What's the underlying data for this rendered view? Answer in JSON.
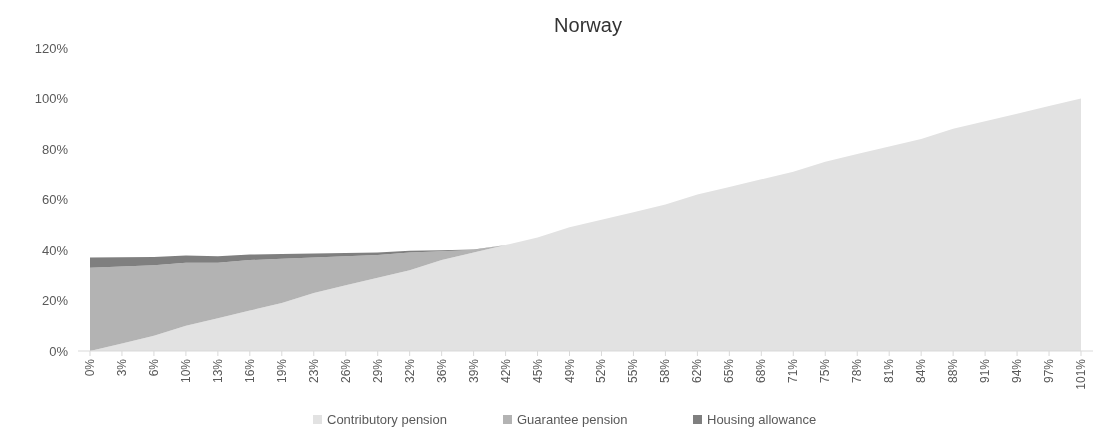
{
  "chart_data": {
    "type": "area",
    "title": "Norway",
    "stacked": true,
    "categories": [
      "0%",
      "3%",
      "6%",
      "10%",
      "13%",
      "16%",
      "19%",
      "23%",
      "26%",
      "29%",
      "32%",
      "36%",
      "39%",
      "42%",
      "45%",
      "49%",
      "52%",
      "55%",
      "58%",
      "62%",
      "65%",
      "68%",
      "71%",
      "75%",
      "78%",
      "81%",
      "84%",
      "88%",
      "91%",
      "94%",
      "97%",
      "101%"
    ],
    "series": [
      {
        "name": "Contributory pension",
        "color": "#e2e2e2",
        "values": [
          0,
          3,
          6,
          10,
          13,
          16,
          19,
          23,
          26,
          29,
          32,
          36,
          39,
          42,
          45,
          49,
          52,
          55,
          58,
          62,
          65,
          68,
          71,
          75,
          78,
          81,
          84,
          88,
          91,
          94,
          97,
          100
        ]
      },
      {
        "name": "Guarantee pension",
        "color": "#b3b3b3",
        "values": [
          33,
          30.5,
          28,
          25,
          22,
          20,
          17.5,
          14,
          11.5,
          9,
          7,
          3.5,
          1,
          0,
          null,
          null,
          null,
          null,
          null,
          null,
          null,
          null,
          null,
          null,
          null,
          null,
          null,
          null,
          null,
          null,
          null,
          null
        ]
      },
      {
        "name": "Housing allowance",
        "color": "#7f7f7f",
        "values": [
          4,
          3.6,
          3.2,
          2.8,
          2.5,
          2.2,
          1.9,
          1.6,
          1.3,
          1,
          0.7,
          0.4,
          0.2,
          0,
          null,
          null,
          null,
          null,
          null,
          null,
          null,
          null,
          null,
          null,
          null,
          null,
          null,
          null,
          null,
          null,
          null,
          null
        ]
      }
    ],
    "ylim": [
      0,
      120
    ],
    "yticks": [
      {
        "value": 0,
        "label": "0%"
      },
      {
        "value": 20,
        "label": "20%"
      },
      {
        "value": 40,
        "label": "40%"
      },
      {
        "value": 60,
        "label": "60%"
      },
      {
        "value": 80,
        "label": "80%"
      },
      {
        "value": 100,
        "label": "100%"
      },
      {
        "value": 120,
        "label": "120%"
      }
    ],
    "legend": "bottom"
  }
}
